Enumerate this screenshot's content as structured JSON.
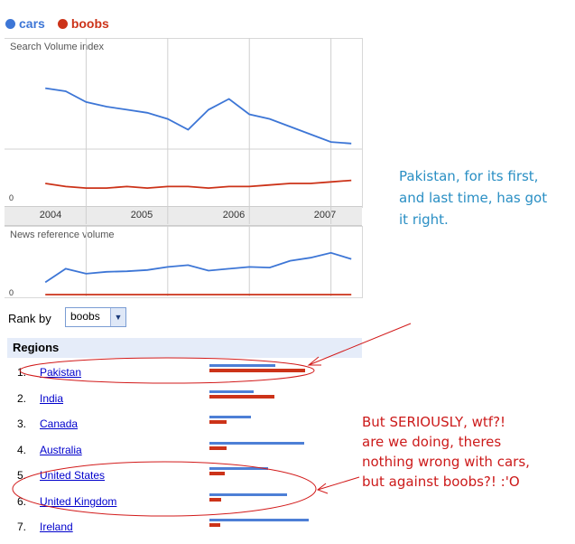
{
  "legend": {
    "series": [
      {
        "name": "cars",
        "color": "#3d76d6"
      },
      {
        "name": "boobs",
        "color": "#cc3319"
      }
    ]
  },
  "chart_data": [
    {
      "type": "line",
      "title": "Search Volume index",
      "x_ticks": [
        "2004",
        "2005",
        "2006",
        "2007"
      ],
      "zero_label": "0",
      "grid": true,
      "series": [
        {
          "name": "cars",
          "color": "#3d76d6",
          "x": [
            2004.0,
            2004.25,
            2004.5,
            2004.75,
            2005.0,
            2005.25,
            2005.5,
            2005.75,
            2006.0,
            2006.25,
            2006.5,
            2006.75,
            2007.0,
            2007.25,
            2007.5,
            2007.75
          ],
          "values": [
            72,
            70,
            63,
            60,
            58,
            56,
            52,
            45,
            58,
            65,
            55,
            52,
            47,
            42,
            37,
            36
          ]
        },
        {
          "name": "boobs",
          "color": "#cc3319",
          "x": [
            2004.0,
            2004.25,
            2004.5,
            2004.75,
            2005.0,
            2005.25,
            2005.5,
            2005.75,
            2006.0,
            2006.25,
            2006.5,
            2006.75,
            2007.0,
            2007.25,
            2007.5,
            2007.75
          ],
          "values": [
            10,
            8,
            7,
            7,
            8,
            7,
            8,
            8,
            7,
            8,
            8,
            9,
            10,
            10,
            11,
            12
          ]
        }
      ]
    },
    {
      "type": "line",
      "title": "News reference volume",
      "zero_label": "0",
      "series": [
        {
          "name": "cars",
          "color": "#3d76d6",
          "x": [
            2004.0,
            2004.25,
            2004.5,
            2004.75,
            2005.0,
            2005.25,
            2005.5,
            2005.75,
            2006.0,
            2006.25,
            2006.5,
            2006.75,
            2007.0,
            2007.25,
            2007.5,
            2007.75
          ],
          "values": [
            20,
            42,
            34,
            37,
            38,
            40,
            45,
            48,
            39,
            42,
            45,
            44,
            55,
            60,
            68,
            58
          ]
        },
        {
          "name": "boobs",
          "color": "#cc3319",
          "x": [
            2004.0,
            2007.75
          ],
          "values": [
            0,
            0
          ]
        }
      ]
    },
    {
      "type": "bar",
      "title": "Regions",
      "categories": [
        "Pakistan",
        "India",
        "Canada",
        "Australia",
        "United States",
        "United Kingdom",
        "Ireland"
      ],
      "series": [
        {
          "name": "cars",
          "color": "#4d7fd6",
          "values": [
            70,
            47,
            44,
            100,
            62,
            82,
            105
          ]
        },
        {
          "name": "boobs",
          "color": "#cc3319",
          "values": [
            100,
            68,
            18,
            18,
            16,
            12,
            11
          ]
        }
      ]
    }
  ],
  "rank": {
    "label": "Rank by",
    "selected": "boobs",
    "arrow": "▼"
  },
  "regions": {
    "header": "Regions",
    "rows": [
      {
        "num": "1.",
        "name": "Pakistan"
      },
      {
        "num": "2.",
        "name": "India"
      },
      {
        "num": "3.",
        "name": "Canada"
      },
      {
        "num": "4.",
        "name": "Australia"
      },
      {
        "num": "5.",
        "name": "United States"
      },
      {
        "num": "6.",
        "name": "United Kingdom"
      },
      {
        "num": "7.",
        "name": "Ireland"
      }
    ]
  },
  "annotations": {
    "blue_lines": [
      "Pakistan, for its first,",
      "and last time, has got",
      "it right."
    ],
    "red_lines": [
      "But SERIOUSLY, wtf?!",
      "are we doing, theres",
      "nothing wrong with cars,",
      "but against boobs?! :'O"
    ],
    "blue_color": "#2a8fc4",
    "red_color": "#cc1a1a"
  }
}
